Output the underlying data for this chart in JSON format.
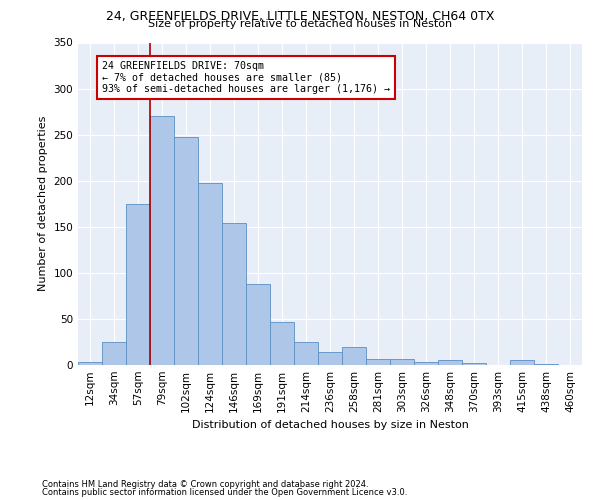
{
  "title_line1": "24, GREENFIELDS DRIVE, LITTLE NESTON, NESTON, CH64 0TX",
  "title_line2": "Size of property relative to detached houses in Neston",
  "xlabel": "Distribution of detached houses by size in Neston",
  "ylabel": "Number of detached properties",
  "footer_line1": "Contains HM Land Registry data © Crown copyright and database right 2024.",
  "footer_line2": "Contains public sector information licensed under the Open Government Licence v3.0.",
  "bar_labels": [
    "12sqm",
    "34sqm",
    "57sqm",
    "79sqm",
    "102sqm",
    "124sqm",
    "146sqm",
    "169sqm",
    "191sqm",
    "214sqm",
    "236sqm",
    "258sqm",
    "281sqm",
    "303sqm",
    "326sqm",
    "348sqm",
    "370sqm",
    "393sqm",
    "415sqm",
    "438sqm",
    "460sqm"
  ],
  "bar_values": [
    3,
    25,
    175,
    270,
    247,
    197,
    154,
    88,
    47,
    25,
    14,
    20,
    6,
    7,
    3,
    5,
    2,
    0,
    5,
    1,
    0
  ],
  "bar_color": "#aec6e8",
  "bar_edgecolor": "#5a8fc2",
  "bg_color": "#e8eef8",
  "annotation_title": "24 GREENFIELDS DRIVE: 70sqm",
  "annotation_line2": "← 7% of detached houses are smaller (85)",
  "annotation_line3": "93% of semi-detached houses are larger (1,176) →",
  "vline_color": "#aa0000",
  "annotation_box_edgecolor": "#cc0000",
  "vline_bar_index": 2.5,
  "ylim": [
    0,
    350
  ],
  "yticks": [
    0,
    50,
    100,
    150,
    200,
    250,
    300,
    350
  ]
}
